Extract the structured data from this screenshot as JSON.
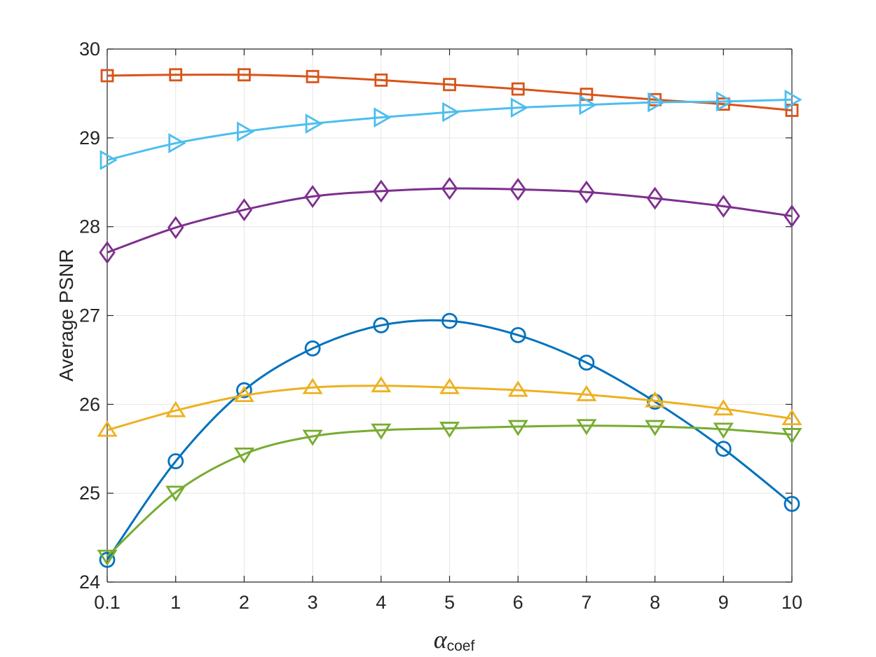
{
  "chart_data": {
    "type": "line",
    "title": "",
    "xlabel": {
      "symbol": "α",
      "subscript": "coef"
    },
    "ylabel": "Average PSNR",
    "categories": [
      "0.1",
      "1",
      "2",
      "3",
      "4",
      "5",
      "6",
      "7",
      "8",
      "9",
      "10"
    ],
    "ylim": [
      24,
      30
    ],
    "yticks": [
      "24",
      "25",
      "26",
      "27",
      "28",
      "29",
      "30"
    ],
    "grid": true,
    "legend": "none",
    "series": [
      {
        "color": "#0072BD",
        "marker": "circle",
        "values": [
          24.25,
          25.36,
          26.16,
          26.63,
          26.89,
          26.94,
          26.78,
          26.47,
          26.03,
          25.5,
          24.88
        ]
      },
      {
        "color": "#D95319",
        "marker": "square",
        "values": [
          29.7,
          29.71,
          29.71,
          29.69,
          29.65,
          29.6,
          29.55,
          29.49,
          29.43,
          29.38,
          29.31
        ]
      },
      {
        "color": "#EDB120",
        "marker": "triangle-up",
        "values": [
          25.71,
          25.93,
          26.1,
          26.19,
          26.21,
          26.19,
          26.16,
          26.11,
          26.04,
          25.95,
          25.84
        ]
      },
      {
        "color": "#7E2F8E",
        "marker": "diamond",
        "values": [
          27.71,
          27.99,
          28.19,
          28.34,
          28.4,
          28.43,
          28.42,
          28.39,
          28.32,
          28.23,
          28.12
        ]
      },
      {
        "color": "#77AC30",
        "marker": "triangle-down",
        "values": [
          24.29,
          25.01,
          25.44,
          25.64,
          25.71,
          25.73,
          25.75,
          25.76,
          25.75,
          25.72,
          25.66
        ]
      },
      {
        "color": "#4DBEEE",
        "marker": "triangle-right",
        "values": [
          28.75,
          28.94,
          29.07,
          29.16,
          29.23,
          29.29,
          29.34,
          29.37,
          29.4,
          29.41,
          29.43
        ]
      }
    ]
  }
}
